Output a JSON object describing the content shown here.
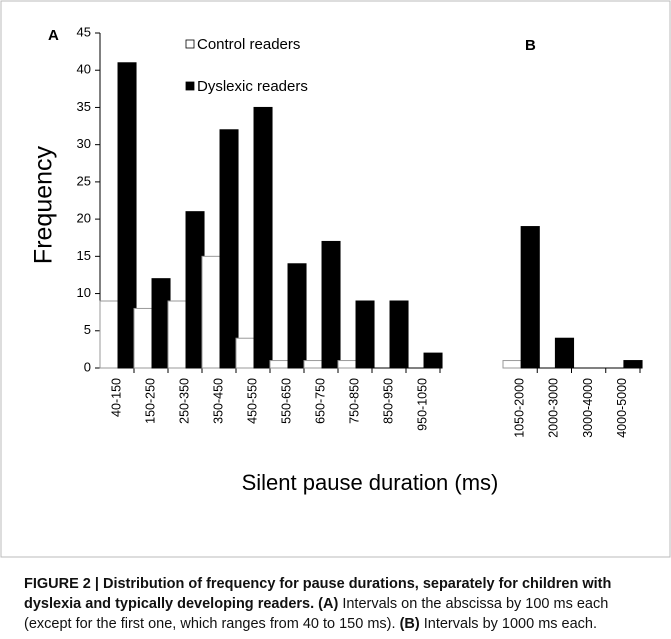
{
  "chart_data": [
    {
      "type": "bar",
      "panel_label": "A",
      "y_label": "Frequency",
      "x_label": "Silent pause duration (ms)",
      "categories": [
        "40-150",
        "150-250",
        "250-350",
        "350-450",
        "450-550",
        "550-650",
        "650-750",
        "750-850",
        "850-950",
        "950-1050"
      ],
      "series": [
        {
          "name": "Control readers",
          "color": "#ffffff",
          "values": [
            9,
            8,
            9,
            15,
            4,
            1,
            1,
            1,
            0,
            0
          ]
        },
        {
          "name": "Dyslexic readers",
          "color": "#000000",
          "values": [
            41,
            12,
            21,
            32,
            35,
            14,
            17,
            9,
            9,
            2
          ]
        }
      ],
      "ylim": [
        0,
        45
      ],
      "yticks": [
        0,
        5,
        10,
        15,
        20,
        25,
        30,
        35,
        40,
        45
      ]
    },
    {
      "type": "bar",
      "panel_label": "B",
      "categories": [
        "1050-2000",
        "2000-3000",
        "3000-4000",
        "4000-5000"
      ],
      "series": [
        {
          "color": "#ffffff",
          "values": [
            1,
            0,
            0,
            0
          ]
        },
        {
          "color": "#000000",
          "values": [
            19,
            4,
            0,
            1
          ]
        }
      ],
      "ylim": [
        0,
        45
      ]
    }
  ],
  "caption": {
    "heading": "FIGURE 2 | Distribution of frequency for pause durations, separately for children with dyslexia and typically developing readers.",
    "parts": [
      "(A)",
      "Intervals on the abscissa by 100 ms each (except for the first one, which ranges from 40 to 150 ms).",
      "(B)",
      "Intervals by 1000 ms each."
    ]
  }
}
